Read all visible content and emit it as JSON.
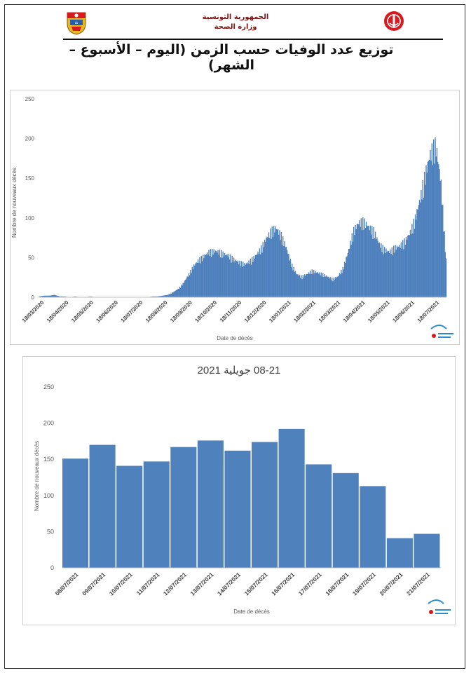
{
  "header": {
    "republic": "الجمهورية التونسية",
    "ministry": "وزارة الصحة",
    "title": "توزيع عدد الوفيات حسب الزمن (اليوم – الأسبوع – الشهر)"
  },
  "colors": {
    "bar": "#4f81bd",
    "grid": "#d9d9d9",
    "logo_red": "#d71920",
    "header_text": "#7a1515"
  },
  "chart_data": [
    {
      "type": "bar",
      "title": "",
      "xlabel": "Date de décès",
      "ylabel": "Nombre de nouveaux décès",
      "ylim": [
        0,
        250
      ],
      "yticks": [
        0,
        50,
        100,
        150,
        200,
        250
      ],
      "x_tick_labels": [
        "18/03/2020",
        "18/04/2020",
        "18/05/2020",
        "18/06/2020",
        "18/07/2020",
        "18/08/2020",
        "18/09/2020",
        "18/10/2020",
        "18/11/2020",
        "18/12/2020",
        "18/01/2021",
        "18/02/2021",
        "18/03/2021",
        "18/04/2021",
        "18/05/2021",
        "18/06/2021",
        "18/07/2021"
      ],
      "x_range": [
        "18/03/2020",
        "21/07/2021"
      ],
      "weekly_values": [
        1,
        2,
        2,
        3,
        1,
        1,
        0,
        1,
        0,
        0,
        1,
        0,
        0,
        0,
        0,
        0,
        0,
        0,
        0,
        0,
        0,
        0,
        1,
        1,
        2,
        3,
        6,
        10,
        17,
        27,
        38,
        45,
        50,
        55,
        56,
        55,
        52,
        50,
        45,
        42,
        40,
        44,
        50,
        58,
        70,
        80,
        84,
        75,
        60,
        40,
        28,
        25,
        28,
        32,
        30,
        28,
        25,
        22,
        25,
        35,
        55,
        80,
        90,
        92,
        85,
        80,
        65,
        58,
        55,
        60,
        62,
        68,
        78,
        95,
        120,
        150,
        175,
        185,
        140,
        45
      ],
      "grid": "none"
    },
    {
      "type": "bar",
      "title": "08-21 جويلية 2021",
      "xlabel": "Date de décès",
      "ylabel": "Nombre de nouveaux décès",
      "ylim": [
        0,
        250
      ],
      "yticks": [
        0,
        50,
        100,
        150,
        200,
        250
      ],
      "categories": [
        "08/07/2021",
        "09/07/2021",
        "10/07/2021",
        "11/07/2021",
        "12/07/2021",
        "13/07/2021",
        "14/07/2021",
        "15/07/2021",
        "16/07/2021",
        "17/07/2021",
        "18/07/2021",
        "19/07/2021",
        "20/07/2021",
        "21/07/2021"
      ],
      "values": [
        151,
        170,
        141,
        147,
        167,
        176,
        162,
        174,
        192,
        143,
        131,
        113,
        41,
        47
      ],
      "grid": "none"
    }
  ]
}
